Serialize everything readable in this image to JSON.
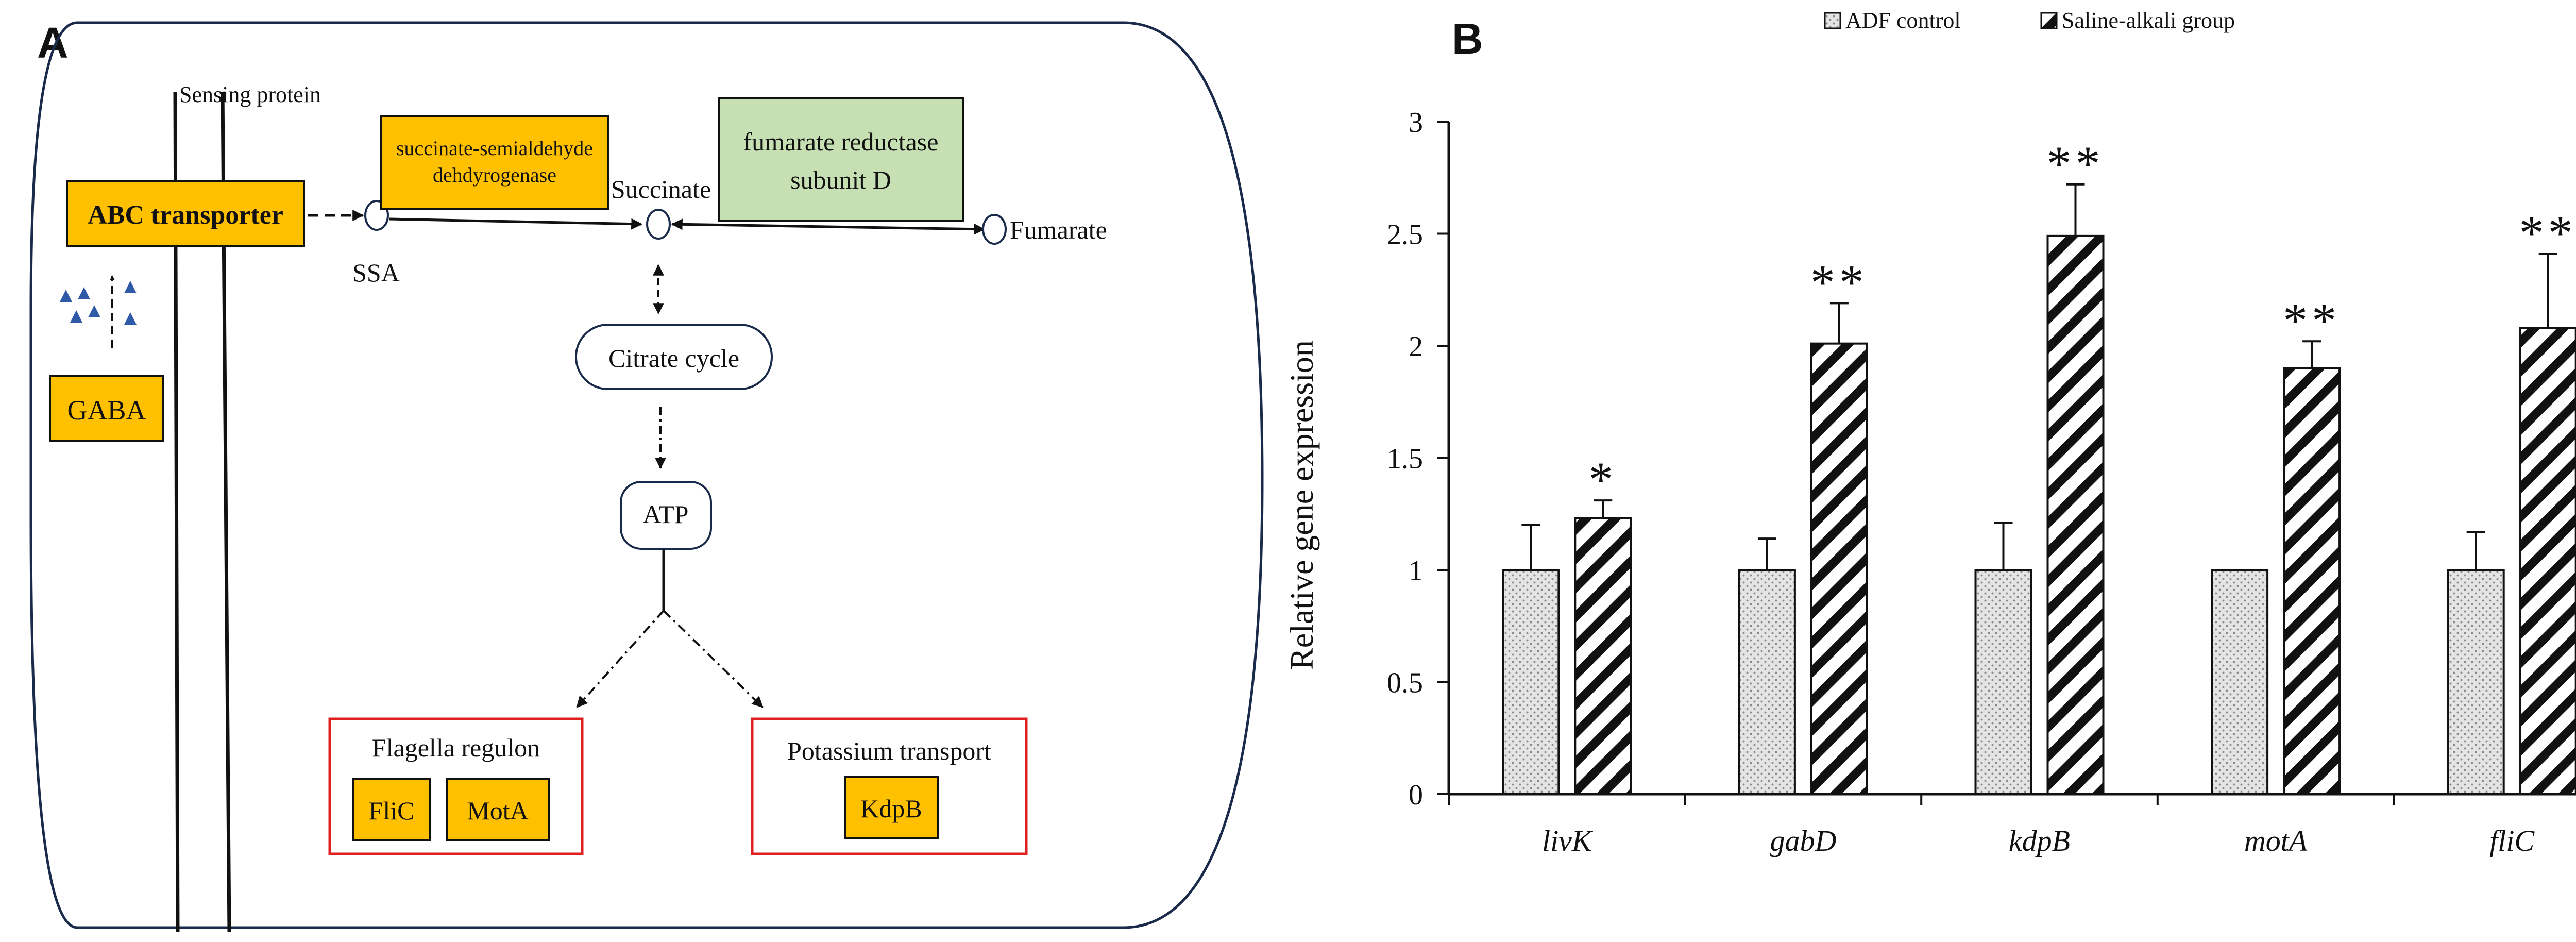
{
  "panel_a": {
    "letter": "A",
    "sensing_protein": "Sensing protein",
    "abc_transporter": "ABC transporter",
    "gaba": "GABA",
    "ssa": "SSA",
    "ssadh_line1": "succinate-semialdehyde",
    "ssadh_line2": "dehdyrogenase",
    "succinate": "Succinate",
    "frd_line1": "fumarate reductase",
    "frd_line2": "subunit D",
    "fumarate": "Fumarate",
    "citrate_cycle": "Citrate cycle",
    "atp": "ATP",
    "flagella_regulon": "Flagella regulon",
    "flic": "FliC",
    "mota": "MotA",
    "potassium_transport": "Potassium transport",
    "kdpb": "KdpB",
    "colors": {
      "gene_box": "#FFC000",
      "enzyme_green": "#C6E0B4",
      "group_border": "#E02020",
      "gaba_marker": "#2E5AA8"
    }
  },
  "panel_b": {
    "letter": "B",
    "legend": {
      "control": "ADF control",
      "treatment": "Saline-alkali group"
    },
    "chart_data": {
      "type": "bar",
      "ylabel": "Relative gene expression",
      "ylim": [
        0,
        3
      ],
      "yticks": [
        "0",
        "0.5",
        "1",
        "1.5",
        "2",
        "2.5",
        "3"
      ],
      "grid": false,
      "legend_position": "top",
      "categories": [
        "livK",
        "gabD",
        "kdpB",
        "motA",
        "fliC"
      ],
      "series": [
        {
          "name": "ADF control",
          "values": [
            1,
            1,
            1,
            1,
            1
          ],
          "errors": [
            0.2,
            0.14,
            0.21,
            0,
            0.17
          ]
        },
        {
          "name": "Saline-alkali group",
          "values": [
            1.23,
            2.01,
            2.49,
            1.9,
            2.08
          ],
          "errors": [
            0.08,
            0.18,
            0.23,
            0.12,
            0.33
          ]
        }
      ],
      "significance": [
        "*",
        "**",
        "**",
        "**",
        "**"
      ]
    }
  }
}
